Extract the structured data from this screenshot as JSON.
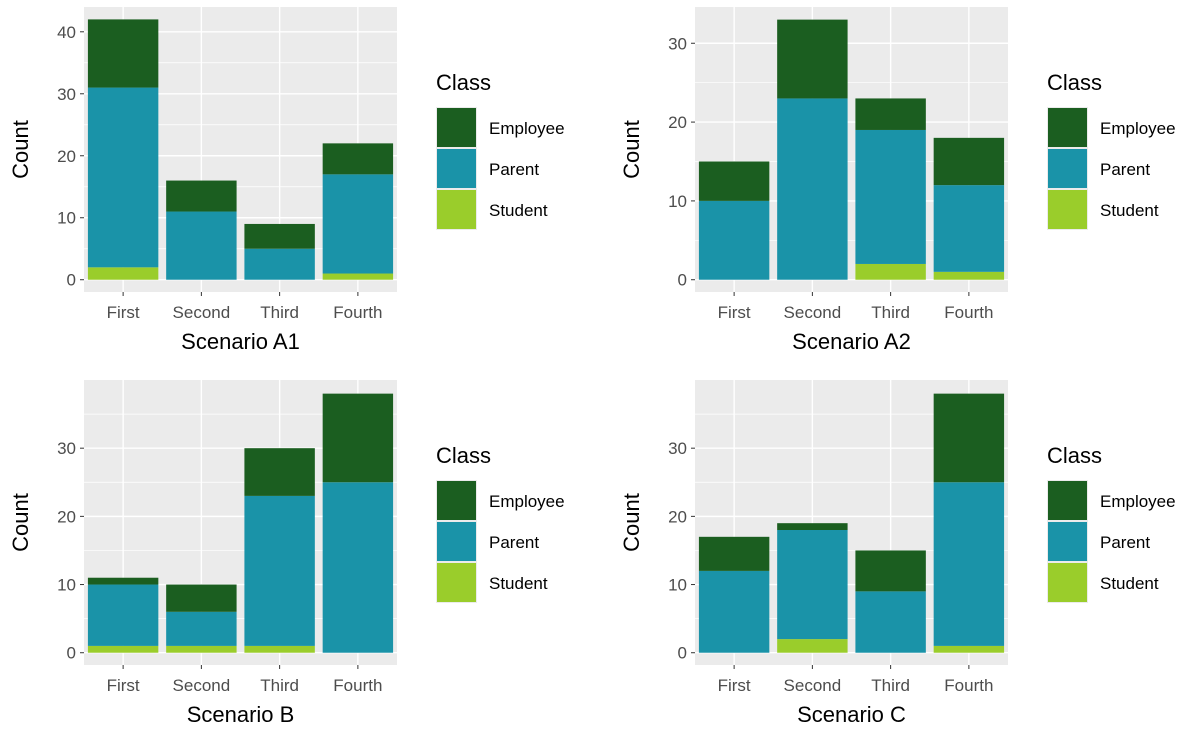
{
  "legend": {
    "title": "Class",
    "entries": [
      {
        "name": "Employee",
        "color": "#1b5e20"
      },
      {
        "name": "Parent",
        "color": "#1a93a8"
      },
      {
        "name": "Student",
        "color": "#9acd2b"
      }
    ]
  },
  "colors": {
    "panel_background": "#ebebeb",
    "grid": "#ffffff",
    "axis_text": "#4d4d4d",
    "title_text": "#000000"
  },
  "chart_data": [
    {
      "type": "bar",
      "stacked": true,
      "xlabel": "Scenario A1",
      "ylabel": "Count",
      "categories": [
        "First",
        "Second",
        "Third",
        "Fourth"
      ],
      "ylim": [
        0,
        44
      ],
      "yticks": [
        0,
        10,
        20,
        30,
        40
      ],
      "series": [
        {
          "name": "Student",
          "values": [
            2,
            0,
            0,
            1
          ]
        },
        {
          "name": "Parent",
          "values": [
            29,
            11,
            5,
            16
          ]
        },
        {
          "name": "Employee",
          "values": [
            11,
            5,
            4,
            5
          ]
        }
      ],
      "legend_title": "Class",
      "legend_position": "right",
      "grid": true
    },
    {
      "type": "bar",
      "stacked": true,
      "xlabel": "Scenario A2",
      "ylabel": "Count",
      "categories": [
        "First",
        "Second",
        "Third",
        "Fourth"
      ],
      "ylim": [
        0,
        34.6
      ],
      "yticks": [
        0,
        10,
        20,
        30
      ],
      "series": [
        {
          "name": "Student",
          "values": [
            0,
            0,
            2,
            1
          ]
        },
        {
          "name": "Parent",
          "values": [
            10,
            23,
            17,
            11
          ]
        },
        {
          "name": "Employee",
          "values": [
            5,
            10,
            4,
            6
          ]
        }
      ],
      "legend_title": "Class",
      "legend_position": "right",
      "grid": true
    },
    {
      "type": "bar",
      "stacked": true,
      "xlabel": "Scenario B",
      "ylabel": "Count",
      "categories": [
        "First",
        "Second",
        "Third",
        "Fourth"
      ],
      "ylim": [
        0,
        40
      ],
      "yticks": [
        0,
        10,
        20,
        30
      ],
      "series": [
        {
          "name": "Student",
          "values": [
            1,
            1,
            1,
            0
          ]
        },
        {
          "name": "Parent",
          "values": [
            9,
            5,
            22,
            25
          ]
        },
        {
          "name": "Employee",
          "values": [
            1,
            4,
            7,
            13
          ]
        }
      ],
      "legend_title": "Class",
      "legend_position": "right",
      "grid": true
    },
    {
      "type": "bar",
      "stacked": true,
      "xlabel": "Scenario C",
      "ylabel": "Count",
      "categories": [
        "First",
        "Second",
        "Third",
        "Fourth"
      ],
      "ylim": [
        0,
        40
      ],
      "yticks": [
        0,
        10,
        20,
        30
      ],
      "series": [
        {
          "name": "Student",
          "values": [
            0,
            2,
            0,
            1
          ]
        },
        {
          "name": "Parent",
          "values": [
            12,
            16,
            9,
            24
          ]
        },
        {
          "name": "Employee",
          "values": [
            5,
            1,
            6,
            13
          ]
        }
      ],
      "legend_title": "Class",
      "legend_position": "right",
      "grid": true
    }
  ]
}
